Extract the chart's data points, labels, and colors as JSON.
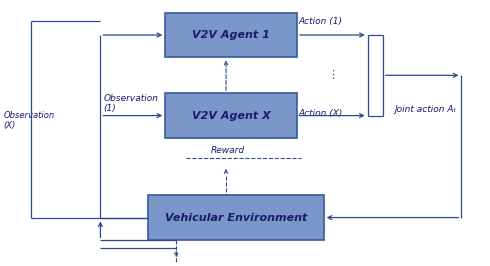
{
  "fig_width": 4.9,
  "fig_height": 2.66,
  "dpi": 100,
  "background_color": "#ffffff",
  "box_color": "#7b96c8",
  "box_edge_color": "#3a5a9a",
  "box_text_color": "#1a1a6e",
  "arrow_color": "#2a4a8a",
  "text_color": "#1a1a6e",
  "agent1_label": "V2V Agent 1",
  "agentx_label": "V2V Agent X",
  "env_label": "Vehicular Environment",
  "action1_label": "Action (1)",
  "actionx_label": "Action (X)",
  "obs1_label": "Observation\n(1)",
  "obsx_label": "Observation\n(X)",
  "reward_label": "Reward",
  "joint_label": "Joint action Aₜ"
}
